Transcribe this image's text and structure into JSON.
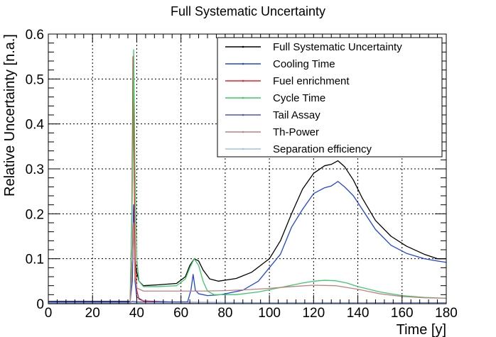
{
  "chart_data": {
    "type": "line",
    "title": "Full Systematic Uncertainty",
    "xlabel": "Time [y]",
    "ylabel": "Relative Uncertainty [n.a.]",
    "xlim": [
      0,
      180
    ],
    "ylim": [
      0,
      0.6
    ],
    "x_ticks": [
      "0",
      "20",
      "40",
      "60",
      "80",
      "100",
      "120",
      "140",
      "160",
      "180"
    ],
    "y_ticks": [
      "0",
      "0.1",
      "0.2",
      "0.3",
      "0.4",
      "0.5",
      "0.6"
    ],
    "grid": true,
    "legend_position": "top-right",
    "series": [
      {
        "name": "Full Systematic Uncertainty",
        "color": "#000000",
        "points": [
          [
            0,
            0.005
          ],
          [
            37,
            0.005
          ],
          [
            38,
            0.1
          ],
          [
            38.6,
            0.22
          ],
          [
            39.2,
            0.1
          ],
          [
            40,
            0.07
          ],
          [
            41,
            0.05
          ],
          [
            43,
            0.04
          ],
          [
            50,
            0.042
          ],
          [
            58,
            0.045
          ],
          [
            62,
            0.06
          ],
          [
            64,
            0.085
          ],
          [
            66,
            0.1
          ],
          [
            68,
            0.095
          ],
          [
            70,
            0.075
          ],
          [
            73,
            0.055
          ],
          [
            77,
            0.05
          ],
          [
            85,
            0.056
          ],
          [
            92,
            0.07
          ],
          [
            100,
            0.1
          ],
          [
            105,
            0.14
          ],
          [
            110,
            0.2
          ],
          [
            115,
            0.255
          ],
          [
            120,
            0.29
          ],
          [
            125,
            0.307
          ],
          [
            128,
            0.31
          ],
          [
            131,
            0.318
          ],
          [
            134,
            0.305
          ],
          [
            138,
            0.275
          ],
          [
            142,
            0.235
          ],
          [
            148,
            0.185
          ],
          [
            155,
            0.15
          ],
          [
            162,
            0.128
          ],
          [
            170,
            0.11
          ],
          [
            176,
            0.1
          ],
          [
            180,
            0.1
          ]
        ]
      },
      {
        "name": "Cooling Time",
        "color": "#1f45e0",
        "points": [
          [
            0,
            0.004
          ],
          [
            37,
            0.004
          ],
          [
            38,
            0.05
          ],
          [
            38.6,
            0.22
          ],
          [
            39.2,
            0.05
          ],
          [
            40,
            0.015
          ],
          [
            43,
            0.006
          ],
          [
            55,
            0.004
          ],
          [
            63,
            0.004
          ],
          [
            64.5,
            0.03
          ],
          [
            65.5,
            0.065
          ],
          [
            66.5,
            0.03
          ],
          [
            68,
            0.022
          ],
          [
            72,
            0.018
          ],
          [
            78,
            0.02
          ],
          [
            88,
            0.03
          ],
          [
            95,
            0.05
          ],
          [
            100,
            0.08
          ],
          [
            105,
            0.11
          ],
          [
            110,
            0.17
          ],
          [
            115,
            0.21
          ],
          [
            120,
            0.245
          ],
          [
            125,
            0.258
          ],
          [
            128,
            0.262
          ],
          [
            131,
            0.272
          ],
          [
            134,
            0.26
          ],
          [
            138,
            0.24
          ],
          [
            142,
            0.21
          ],
          [
            148,
            0.165
          ],
          [
            155,
            0.13
          ],
          [
            162,
            0.112
          ],
          [
            170,
            0.1
          ],
          [
            176,
            0.095
          ],
          [
            180,
            0.092
          ]
        ]
      },
      {
        "name": "Fuel enrichment",
        "color": "#ee2020",
        "points": [
          [
            0,
            0
          ],
          [
            37,
            0
          ],
          [
            37.8,
            0.2
          ],
          [
            38.3,
            0.55
          ],
          [
            38.8,
            0.3
          ],
          [
            39.3,
            0.1
          ],
          [
            40,
            0.03
          ],
          [
            41,
            0.01
          ],
          [
            43,
            0.006
          ],
          [
            50,
            0.004
          ],
          [
            60,
            0.002
          ],
          [
            65,
            0.001
          ],
          [
            70,
            0.0005
          ],
          [
            180,
            0
          ]
        ]
      },
      {
        "name": "Cycle Time",
        "color": "#3cc86a",
        "points": [
          [
            0,
            0
          ],
          [
            37,
            0
          ],
          [
            38,
            0.25
          ],
          [
            38.6,
            0.565
          ],
          [
            39.2,
            0.3
          ],
          [
            40,
            0.1
          ],
          [
            41,
            0.05
          ],
          [
            43,
            0.038
          ],
          [
            50,
            0.038
          ],
          [
            58,
            0.04
          ],
          [
            62,
            0.055
          ],
          [
            64,
            0.08
          ],
          [
            66,
            0.1
          ],
          [
            68,
            0.085
          ],
          [
            70,
            0.05
          ],
          [
            72,
            0.028
          ],
          [
            75,
            0.02
          ],
          [
            85,
            0.02
          ],
          [
            95,
            0.026
          ],
          [
            105,
            0.036
          ],
          [
            115,
            0.046
          ],
          [
            120,
            0.05
          ],
          [
            125,
            0.052
          ],
          [
            130,
            0.051
          ],
          [
            135,
            0.046
          ],
          [
            140,
            0.038
          ],
          [
            150,
            0.026
          ],
          [
            160,
            0.018
          ],
          [
            170,
            0.014
          ],
          [
            180,
            0.012
          ]
        ]
      },
      {
        "name": "Tail Assay",
        "color": "#5050c0",
        "points": [
          [
            0,
            0.003
          ],
          [
            37,
            0.003
          ],
          [
            38,
            0.005
          ],
          [
            40,
            0.004
          ],
          [
            60,
            0.003
          ],
          [
            100,
            0.002
          ],
          [
            180,
            0.002
          ]
        ]
      },
      {
        "name": "Th-Power",
        "color": "#c08080",
        "points": [
          [
            0,
            0
          ],
          [
            37,
            0
          ],
          [
            38,
            0.1
          ],
          [
            38.6,
            0.18
          ],
          [
            39.2,
            0.06
          ],
          [
            40,
            0.035
          ],
          [
            43,
            0.028
          ],
          [
            55,
            0.028
          ],
          [
            62,
            0.028
          ],
          [
            70,
            0.028
          ],
          [
            80,
            0.029
          ],
          [
            90,
            0.031
          ],
          [
            100,
            0.034
          ],
          [
            110,
            0.038
          ],
          [
            120,
            0.041
          ],
          [
            130,
            0.04
          ],
          [
            140,
            0.032
          ],
          [
            150,
            0.022
          ],
          [
            160,
            0.016
          ],
          [
            170,
            0.013
          ],
          [
            180,
            0.012
          ]
        ]
      },
      {
        "name": "Separation efficiency",
        "color": "#a0c0e0",
        "points": [
          [
            0,
            0.001
          ],
          [
            37,
            0.001
          ],
          [
            40,
            0.002
          ],
          [
            60,
            0.002
          ],
          [
            180,
            0.001
          ]
        ]
      }
    ]
  }
}
